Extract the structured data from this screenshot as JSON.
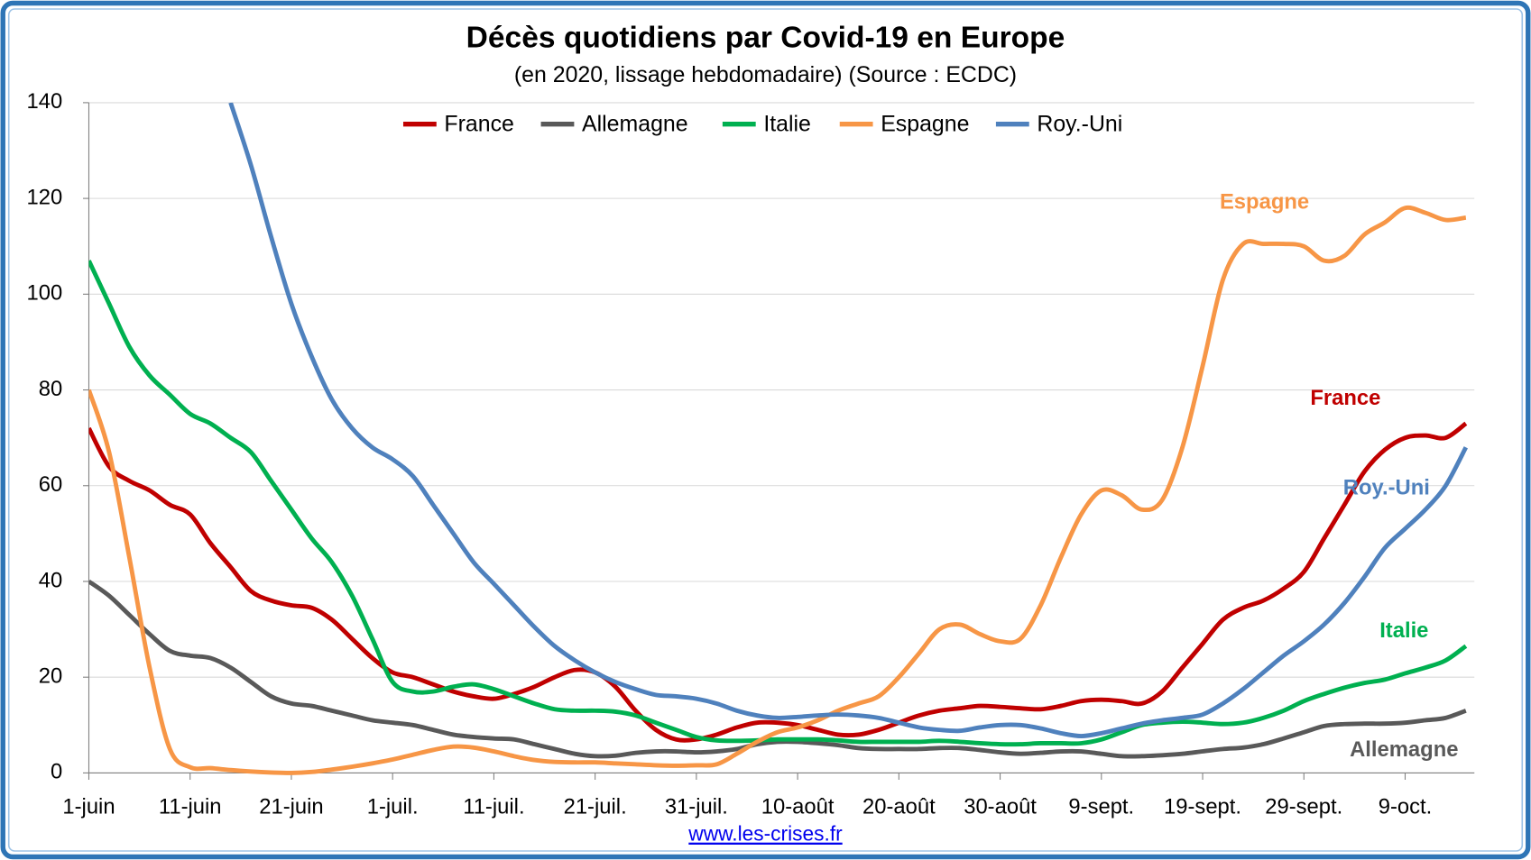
{
  "chart_data": {
    "type": "line",
    "title": "Décès quotidiens par Covid-19 en Europe",
    "subtitle": "(en 2020, lissage hebdomadaire) (Source : ECDC)",
    "source": "www.les-crises.fr",
    "categories": [
      "1-juin",
      null,
      null,
      null,
      null,
      "11-juin",
      null,
      null,
      null,
      null,
      "21-juin",
      null,
      null,
      null,
      null,
      "1-juil.",
      null,
      null,
      null,
      null,
      "11-juil.",
      null,
      null,
      null,
      null,
      "21-juil.",
      null,
      null,
      null,
      null,
      "31-juil.",
      null,
      null,
      null,
      null,
      "10-août",
      null,
      null,
      null,
      null,
      "20-août",
      null,
      null,
      null,
      null,
      "30-août",
      null,
      null,
      null,
      null,
      "9-sept.",
      null,
      null,
      null,
      null,
      "19-sept.",
      null,
      null,
      null,
      null,
      "29-sept.",
      null,
      null,
      null,
      null,
      "9-oct.",
      null,
      null,
      null
    ],
    "ylim": [
      0,
      140
    ],
    "yticks": [
      0,
      20,
      40,
      60,
      80,
      100,
      120,
      140
    ],
    "grid": true,
    "legend": "top",
    "series": [
      {
        "name": "France",
        "color": "#c00000",
        "values": [
          72,
          64,
          61,
          59,
          56,
          54,
          48,
          43,
          38,
          36,
          35,
          34.5,
          32,
          28,
          24,
          21,
          20,
          18.5,
          17,
          16,
          15.5,
          16.5,
          18,
          20,
          21.5,
          21,
          18,
          13,
          9,
          7,
          7,
          8,
          9.5,
          10.5,
          10.5,
          10,
          9,
          8,
          8,
          9,
          10.5,
          12,
          13,
          13.5,
          14,
          13.8,
          13.5,
          13.3,
          14,
          15,
          15.3,
          15,
          14.5,
          17,
          22,
          27,
          32,
          34.5,
          36,
          38.5,
          42,
          49,
          56,
          63,
          67.5,
          70,
          70.5,
          70,
          73
        ]
      },
      {
        "name": "Allemagne",
        "color": "#595959",
        "values": [
          40,
          37,
          33,
          29,
          25.5,
          24.5,
          24,
          22,
          19,
          16,
          14.5,
          14,
          13,
          12,
          11,
          10.5,
          10,
          9,
          8,
          7.5,
          7.2,
          7,
          6,
          5,
          4,
          3.5,
          3.6,
          4.2,
          4.5,
          4.5,
          4.3,
          4.5,
          5,
          6,
          6.5,
          6.5,
          6.2,
          5.8,
          5.2,
          5,
          5,
          5,
          5.2,
          5.2,
          4.8,
          4.3,
          4,
          4.2,
          4.5,
          4.5,
          4,
          3.5,
          3.5,
          3.7,
          4,
          4.5,
          5,
          5.3,
          6,
          7.2,
          8.5,
          9.8,
          10.2,
          10.3,
          10.3,
          10.5,
          11,
          11.5,
          13
        ]
      },
      {
        "name": "Italie",
        "color": "#00b050",
        "values": [
          107,
          98,
          89,
          83,
          79,
          75,
          73,
          70,
          67,
          61,
          55,
          49,
          44,
          37,
          28,
          19,
          17,
          17,
          18,
          18.5,
          17.5,
          16,
          14.5,
          13.3,
          13,
          13,
          12.8,
          12,
          10.5,
          9,
          7.5,
          6.8,
          6.7,
          6.8,
          7,
          7,
          7,
          6.8,
          6.5,
          6.5,
          6.5,
          6.5,
          6.7,
          6.5,
          6.2,
          6,
          6,
          6.2,
          6.2,
          6.2,
          7,
          8.5,
          10,
          10.5,
          10.7,
          10.5,
          10.2,
          10.5,
          11.5,
          13,
          15,
          16.5,
          17.8,
          18.8,
          19.5,
          20.8,
          22,
          23.5,
          26.5
        ]
      },
      {
        "name": "Espagne",
        "color": "#f79646",
        "values": [
          80,
          67,
          45,
          22,
          5,
          1.2,
          1,
          0.6,
          0.3,
          0.1,
          0,
          0.2,
          0.7,
          1.3,
          2,
          2.8,
          3.8,
          4.8,
          5.5,
          5.3,
          4.5,
          3.5,
          2.7,
          2.3,
          2.2,
          2.2,
          2,
          1.8,
          1.6,
          1.5,
          1.6,
          1.8,
          4,
          6.5,
          8.5,
          9.5,
          11,
          13,
          14.5,
          16,
          20,
          25,
          30,
          31,
          29,
          27.5,
          28,
          35,
          45,
          54,
          59,
          58,
          55,
          57,
          68,
          85,
          103,
          110.5,
          110.5,
          110.5,
          110,
          107,
          108,
          112.5,
          115,
          118,
          117,
          115.5,
          116
        ]
      },
      {
        "name": "Roy.-Uni",
        "color": "#4f81bd",
        "values": [
          null,
          null,
          null,
          null,
          null,
          null,
          null,
          140,
          127,
          112,
          98,
          87,
          78,
          72,
          68,
          65.5,
          62,
          56,
          50,
          44,
          39.5,
          35,
          30.5,
          26.5,
          23.5,
          21,
          19,
          17.5,
          16.3,
          16,
          15.5,
          14.5,
          13,
          12,
          11.5,
          11.7,
          12,
          12.2,
          12,
          11.5,
          10.5,
          9.5,
          9,
          8.8,
          9.5,
          10,
          10,
          9.3,
          8.3,
          7.7,
          8.3,
          9.3,
          10.3,
          11,
          11.5,
          12.2,
          14.5,
          17.5,
          21,
          24.5,
          27.5,
          31,
          35.5,
          41,
          47,
          51,
          55,
          60,
          68
        ]
      }
    ],
    "annotations": [
      {
        "text": "Espagne",
        "color": "#f79646"
      },
      {
        "text": "France",
        "color": "#c00000"
      },
      {
        "text": "Roy.-Uni",
        "color": "#4f81bd"
      },
      {
        "text": "Italie",
        "color": "#00b050"
      },
      {
        "text": "Allemagne",
        "color": "#595959"
      }
    ]
  }
}
